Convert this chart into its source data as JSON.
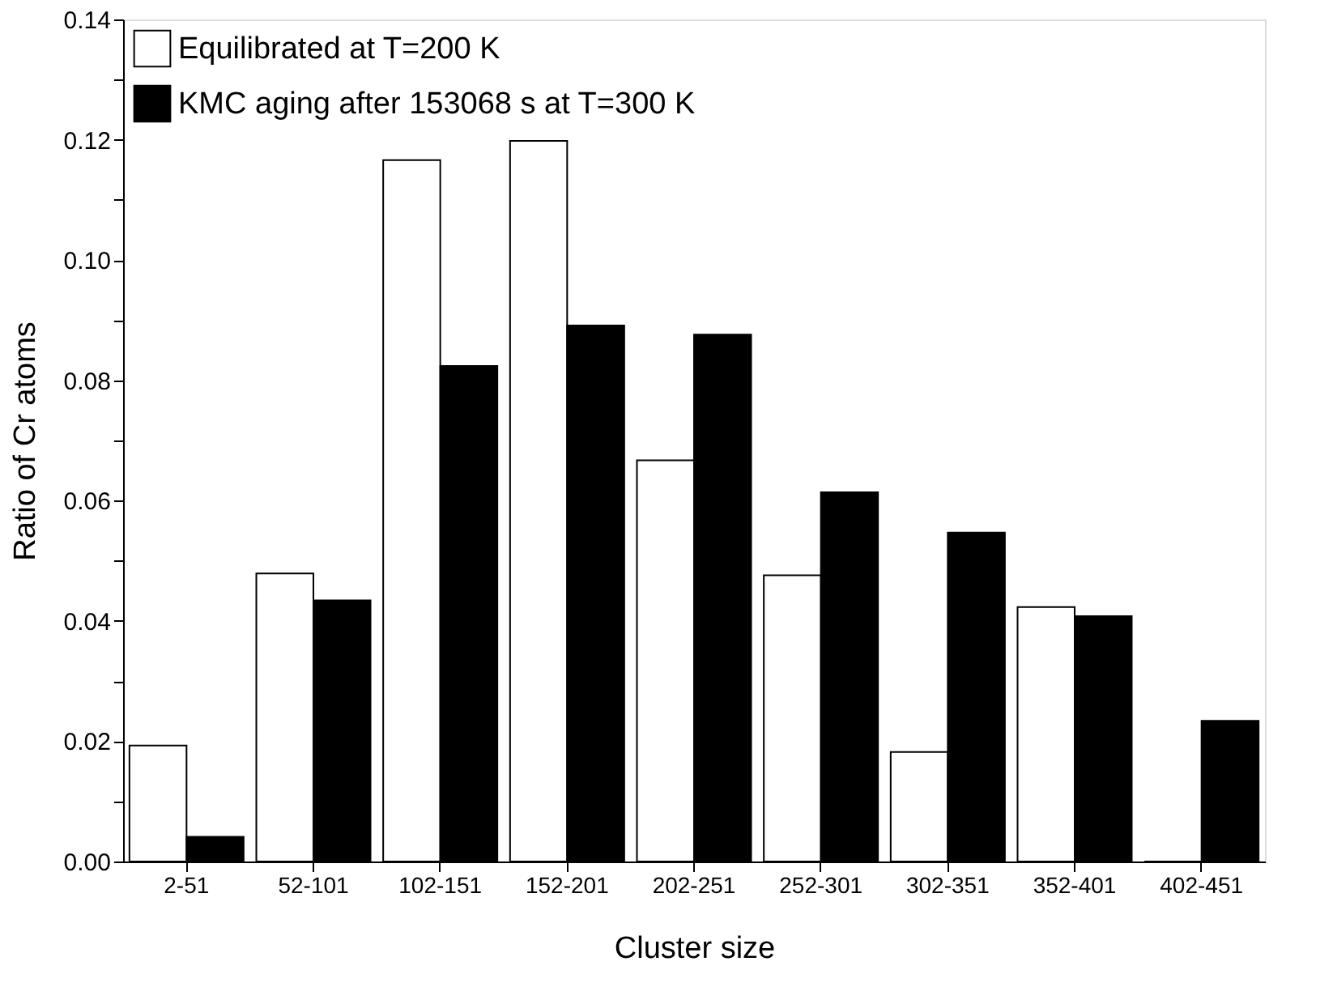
{
  "chart_data": {
    "type": "bar",
    "xlabel": "Cluster size",
    "ylabel": "Ratio of Cr atoms",
    "categories": [
      "2-51",
      "52-101",
      "102-151",
      "152-201",
      "202-251",
      "252-301",
      "302-351",
      "352-401",
      "402-451"
    ],
    "series": [
      {
        "name": "Equilibrated at T=200 K",
        "color": "#ffffff",
        "values": [
          0.0193,
          0.0479,
          0.1166,
          0.1198,
          0.0667,
          0.0476,
          0.0182,
          0.0423,
          0
        ]
      },
      {
        "name": "KMC aging after 153068 s at T=300 K",
        "color": "#000000",
        "values": [
          0.0041,
          0.0434,
          0.0824,
          0.0891,
          0.0876,
          0.0614,
          0.0547,
          0.0408,
          0.0234
        ]
      }
    ],
    "ylim": [
      0,
      0.14
    ],
    "yticks": [
      {
        "value": 0,
        "label": "0.00"
      },
      {
        "value": 0.01,
        "label": null
      },
      {
        "value": 0.02,
        "label": "0.02"
      },
      {
        "value": 0.03,
        "label": null
      },
      {
        "value": 0.04,
        "label": "0.04"
      },
      {
        "value": 0.05,
        "label": null
      },
      {
        "value": 0.06,
        "label": "0.06"
      },
      {
        "value": 0.07,
        "label": null
      },
      {
        "value": 0.08,
        "label": "0.08"
      },
      {
        "value": 0.09,
        "label": null
      },
      {
        "value": 0.1,
        "label": "0.10"
      },
      {
        "value": 0.11,
        "label": null
      },
      {
        "value": 0.12,
        "label": "0.12"
      },
      {
        "value": 0.13,
        "label": null
      },
      {
        "value": 0.14,
        "label": "0.14"
      }
    ],
    "grid": false,
    "legend": "top left"
  }
}
